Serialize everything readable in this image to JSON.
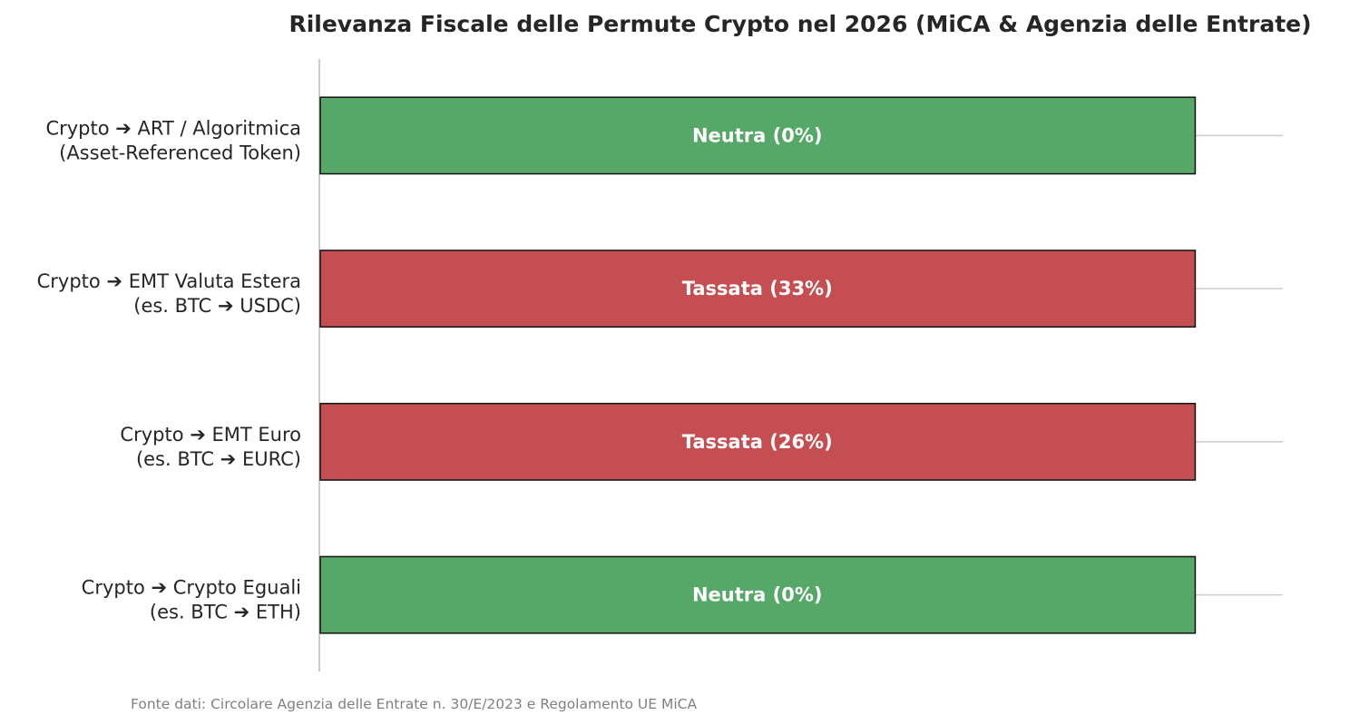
{
  "chart_data": {
    "type": "bar",
    "orientation": "horizontal",
    "title": "Rilevanza Fiscale delle Permute Crypto nel 2026 (MiCA & Agenzia delle Entrate)",
    "xlabel": "",
    "ylabel": "",
    "xlim": [
      0,
      1.1
    ],
    "grid": false,
    "categories": [
      {
        "lines": [
          "Crypto ➔ ART / Algoritmica",
          "(Asset-Referenced Token)"
        ],
        "value": 1,
        "label": "Neutra (0%)",
        "status": "neutral",
        "color": "#55a868"
      },
      {
        "lines": [
          "Crypto ➔ EMT Valuta Estera",
          "(es. BTC ➔ USDC)"
        ],
        "value": 1,
        "label": "Tassata (33%)",
        "status": "taxed",
        "color": "#c44e52"
      },
      {
        "lines": [
          "Crypto ➔ EMT Euro",
          "(es. BTC ➔ EURC)"
        ],
        "value": 1,
        "label": "Tassata (26%)",
        "status": "taxed",
        "color": "#c44e52"
      },
      {
        "lines": [
          "Crypto ➔ Crypto Eguali",
          "(es. BTC ➔ ETH)"
        ],
        "value": 1,
        "label": "Neutra (0%)",
        "status": "neutral",
        "color": "#55a868"
      }
    ],
    "source_note": "Fonte dati: Circolare Agenzia delle Entrate n. 30/E/2023 e Regolamento UE MiCA"
  },
  "colors": {
    "neutral": "#55a868",
    "taxed": "#c44e52",
    "bar_edge": "#111111",
    "axis": "#cccccc",
    "reference_line": "#cccccc",
    "text": "#262626",
    "source_text": "#808080"
  }
}
